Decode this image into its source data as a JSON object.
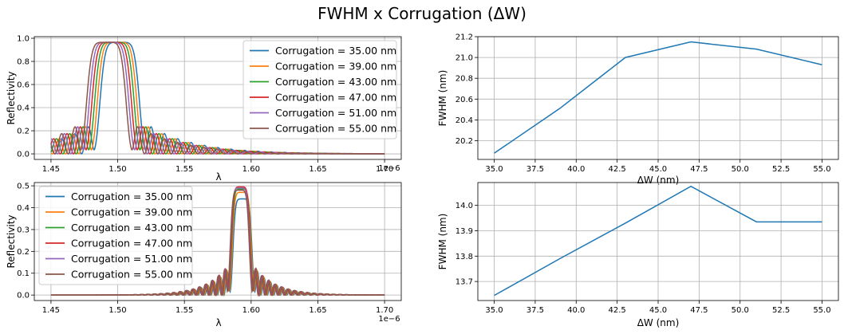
{
  "figure": {
    "suptitle": "FWHM x Corrugation (ΔW)"
  },
  "colors": [
    "#1f77b4",
    "#ff7f0e",
    "#2ca02c",
    "#d62728",
    "#9467bd",
    "#8c564b"
  ],
  "chart_data": [
    {
      "type": "line",
      "xlabel": "λ",
      "ylabel": "Reflectivity",
      "offset_text": "1e−6",
      "xlim": [
        1.4375,
        1.7125
      ],
      "ylim": [
        -0.048,
        1.014
      ],
      "xticks": [
        1.45,
        1.5,
        1.55,
        1.6,
        1.65,
        1.7
      ],
      "xtick_labels": [
        "1.45",
        "1.50",
        "1.55",
        "1.60",
        "1.65",
        "1.70"
      ],
      "yticks": [
        0.0,
        0.2,
        0.4,
        0.6,
        0.8,
        1.0
      ],
      "ytick_labels": [
        "0.0",
        "0.2",
        "0.4",
        "0.6",
        "0.8",
        "1.0"
      ],
      "grid": true,
      "legend_position": "upper right",
      "curve": {
        "family": "bragg",
        "peak_center": [
          1.5015,
          1.4995,
          1.4975,
          1.4955,
          1.4935,
          1.4915
        ],
        "peak_height": [
          0.965,
          0.965,
          0.965,
          0.965,
          0.965,
          0.965
        ],
        "peak_halfwidth": 0.0155
      },
      "series": [
        {
          "name": "Corrugation = 35.00 nm"
        },
        {
          "name": "Corrugation = 39.00 nm"
        },
        {
          "name": "Corrugation = 43.00 nm"
        },
        {
          "name": "Corrugation = 47.00 nm"
        },
        {
          "name": "Corrugation = 51.00 nm"
        },
        {
          "name": "Corrugation = 55.00 nm"
        }
      ]
    },
    {
      "type": "line",
      "xlabel": "ΔW (nm)",
      "ylabel": "FWHM (nm)",
      "xlim": [
        34.0,
        56.0
      ],
      "ylim": [
        20.02,
        21.2
      ],
      "xticks": [
        35.0,
        37.5,
        40.0,
        42.5,
        45.0,
        47.5,
        50.0,
        52.5,
        55.0
      ],
      "xtick_labels": [
        "35.0",
        "37.5",
        "40.0",
        "42.5",
        "45.0",
        "47.5",
        "50.0",
        "52.5",
        "55.0"
      ],
      "yticks": [
        20.2,
        20.4,
        20.6,
        20.8,
        21.0,
        21.2
      ],
      "ytick_labels": [
        "20.2",
        "20.4",
        "20.6",
        "20.8",
        "21.0",
        "21.2"
      ],
      "grid": true,
      "x": [
        35,
        39,
        43,
        47,
        51,
        55
      ],
      "y": [
        20.08,
        20.51,
        21.0,
        21.15,
        21.08,
        20.93
      ]
    },
    {
      "type": "line",
      "xlabel": "λ",
      "ylabel": "Reflectivity",
      "offset_text": "1e−6",
      "xlim": [
        1.4375,
        1.7125
      ],
      "ylim": [
        -0.025,
        0.515
      ],
      "xticks": [
        1.45,
        1.5,
        1.55,
        1.6,
        1.65,
        1.7
      ],
      "xtick_labels": [
        "1.45",
        "1.50",
        "1.55",
        "1.60",
        "1.65",
        "1.70"
      ],
      "yticks": [
        0.0,
        0.1,
        0.2,
        0.3,
        0.4,
        0.5
      ],
      "ytick_labels": [
        "0.0",
        "0.1",
        "0.2",
        "0.3",
        "0.4",
        "0.5"
      ],
      "grid": true,
      "legend_position": "upper left",
      "curve": {
        "family": "bragg",
        "peak_center": [
          1.5935,
          1.593,
          1.5925,
          1.5922,
          1.5918,
          1.5915
        ],
        "peak_height": [
          0.44,
          0.47,
          0.485,
          0.495,
          0.49,
          0.48
        ],
        "peak_halfwidth": 0.0075
      },
      "series": [
        {
          "name": "Corrugation = 35.00 nm"
        },
        {
          "name": "Corrugation = 39.00 nm"
        },
        {
          "name": "Corrugation = 43.00 nm"
        },
        {
          "name": "Corrugation = 47.00 nm"
        },
        {
          "name": "Corrugation = 51.00 nm"
        },
        {
          "name": "Corrugation = 55.00 nm"
        }
      ]
    },
    {
      "type": "line",
      "xlabel": "ΔW (nm)",
      "ylabel": "FWHM (nm)",
      "xlim": [
        34.0,
        56.0
      ],
      "ylim": [
        13.625,
        14.09
      ],
      "xticks": [
        35.0,
        37.5,
        40.0,
        42.5,
        45.0,
        47.5,
        50.0,
        52.5,
        55.0
      ],
      "xtick_labels": [
        "35.0",
        "37.5",
        "40.0",
        "42.5",
        "45.0",
        "47.5",
        "50.0",
        "52.5",
        "55.0"
      ],
      "yticks": [
        13.7,
        13.8,
        13.9,
        14.0
      ],
      "ytick_labels": [
        "13.7",
        "13.8",
        "13.9",
        "14.0"
      ],
      "grid": true,
      "x": [
        35,
        39,
        43,
        47,
        51,
        55
      ],
      "y": [
        13.645,
        13.79,
        13.93,
        14.075,
        13.935,
        13.935
      ]
    }
  ]
}
